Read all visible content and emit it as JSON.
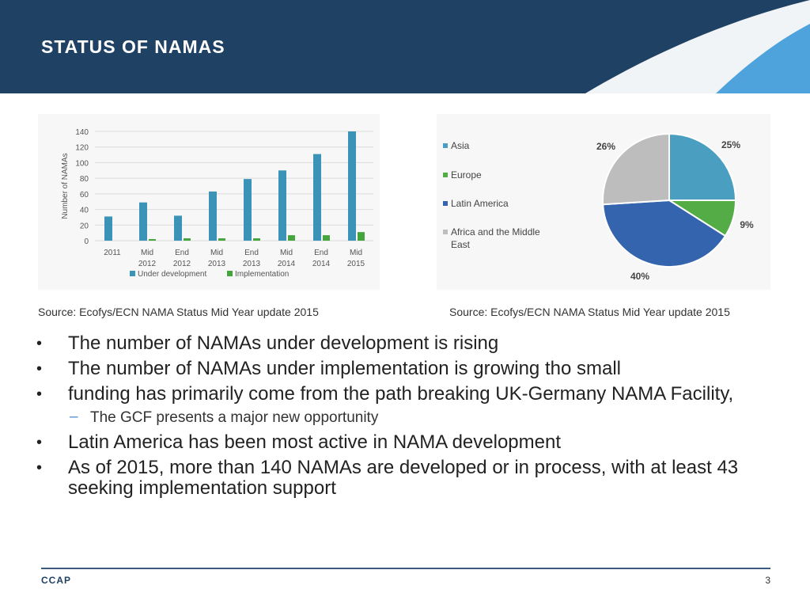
{
  "header": {
    "title": "STATUS OF NAMAS",
    "colors": {
      "background": "#1f4163",
      "swoosh_light": "#f1f4f7",
      "swoosh_blue": "#4ea3dc"
    }
  },
  "chart_data": [
    {
      "type": "bar",
      "categories": [
        "2011",
        "Mid 2012",
        "End 2012",
        "Mid 2013",
        "End 2013",
        "Mid 2014",
        "End 2014",
        "Mid 2015"
      ],
      "series": [
        {
          "name": "Under development",
          "color": "#3b93b8",
          "values": [
            31,
            49,
            32,
            63,
            79,
            90,
            111,
            140
          ]
        },
        {
          "name": "Implementation",
          "color": "#44a53d",
          "values": [
            0,
            2,
            3,
            3,
            3,
            7,
            7,
            11
          ]
        }
      ],
      "ylabel": "Number of NAMAs",
      "ylim": [
        0,
        140
      ],
      "yticks": [
        0,
        20,
        40,
        60,
        80,
        100,
        120,
        140
      ],
      "grid": true,
      "legend": "bottom"
    },
    {
      "type": "pie",
      "slices": [
        {
          "label": "Asia",
          "value": 25,
          "display": "25%",
          "color": "#4a9fc1"
        },
        {
          "label": "Europe",
          "value": 9,
          "display": "9%",
          "color": "#53ac46"
        },
        {
          "label": "Latin America",
          "value": 40,
          "display": "40%",
          "color": "#3464ad"
        },
        {
          "label": "Africa and the Middle East",
          "value": 26,
          "display": "26%",
          "color": "#bdbdbd"
        }
      ],
      "legend": "left"
    }
  ],
  "sources": {
    "left": "Source: Ecofys/ECN NAMA Status Mid Year update 2015",
    "right": "Source: Ecofys/ECN NAMA Status Mid Year update 2015"
  },
  "bullets": [
    {
      "level": 1,
      "text": "The number of NAMAs under development is rising"
    },
    {
      "level": 1,
      "text": "The number of NAMAs under implementation is growing tho small"
    },
    {
      "level": 1,
      "text": "funding has primarily come from the path breaking UK-Germany NAMA Facility,"
    },
    {
      "level": 2,
      "text": "The GCF presents a major new opportunity"
    },
    {
      "level": 1,
      "text": "Latin America has been most active in NAMA development"
    },
    {
      "level": 1,
      "text": "As of 2015, more than 140 NAMAs are developed or in process, with at least 43 seeking implementation support"
    }
  ],
  "footer": {
    "org": "CCAP",
    "page_number": "3"
  }
}
